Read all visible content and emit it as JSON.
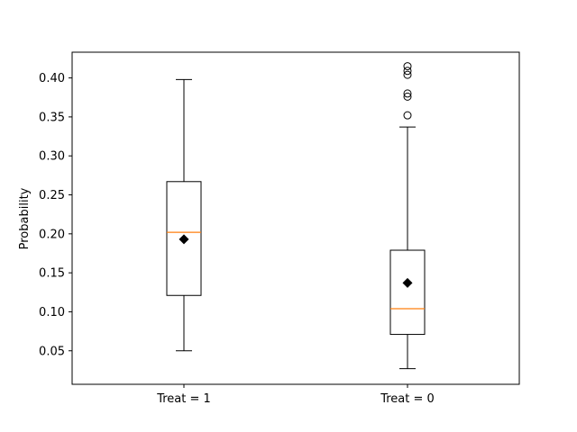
{
  "chart_data": {
    "type": "boxplot",
    "ylabel": "Probability",
    "ylim": [
      0.007,
      0.433
    ],
    "yticks": [
      0.05,
      0.1,
      0.15,
      0.2,
      0.25,
      0.3,
      0.35,
      0.4
    ],
    "ytick_labels": [
      "0.05",
      "0.10",
      "0.15",
      "0.20",
      "0.25",
      "0.30",
      "0.35",
      "0.40"
    ],
    "categories": [
      "Treat = 1",
      "Treat = 0"
    ],
    "boxes": [
      {
        "label": "Treat = 1",
        "whisker_low": 0.05,
        "q1": 0.121,
        "median": 0.202,
        "q3": 0.267,
        "whisker_high": 0.398,
        "mean": 0.193,
        "outliers": []
      },
      {
        "label": "Treat = 0",
        "whisker_low": 0.027,
        "q1": 0.071,
        "median": 0.104,
        "q3": 0.179,
        "whisker_high": 0.337,
        "mean": 0.137,
        "outliers": [
          0.352,
          0.376,
          0.38,
          0.404,
          0.409,
          0.415
        ]
      }
    ],
    "colors": {
      "box": "#000000",
      "median": "#ff7f0e",
      "mean_marker": "#000000"
    }
  }
}
